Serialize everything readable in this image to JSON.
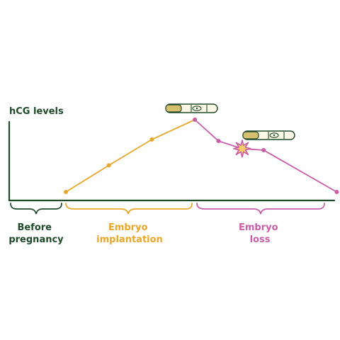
{
  "colors": {
    "axis": "#1f4a2a",
    "implantation": "#e8a72a",
    "loss": "#c95ea8",
    "burst": "#f3cc6b",
    "test_body": "#fcf7e6",
    "test_cap": "#d7bf70"
  },
  "y_axis_label": "hCG levels",
  "phases": [
    {
      "id": "before",
      "label_lines": [
        "Before",
        "pregnancy"
      ]
    },
    {
      "id": "implantation",
      "label_lines": [
        "Embryo",
        "implantation"
      ]
    },
    {
      "id": "loss",
      "label_lines": [
        "Embryo",
        "loss"
      ]
    }
  ],
  "icons": {
    "test_positive": "pregnancy-test-icon",
    "test_second": "pregnancy-test-icon",
    "burst": "burst-star-icon"
  },
  "chart_data": {
    "type": "line",
    "ylabel": "hCG levels",
    "series": [
      {
        "phase": "implantation",
        "values": [
          [
            0,
            0.05
          ],
          [
            1,
            0.4
          ],
          [
            2,
            0.74
          ],
          [
            3,
            1.0
          ]
        ]
      },
      {
        "phase": "loss",
        "values": [
          [
            3,
            1.0
          ],
          [
            3.55,
            0.72
          ],
          [
            4.1,
            0.62
          ],
          [
            4.6,
            0.6
          ],
          [
            6.3,
            0.05
          ]
        ]
      }
    ]
  }
}
